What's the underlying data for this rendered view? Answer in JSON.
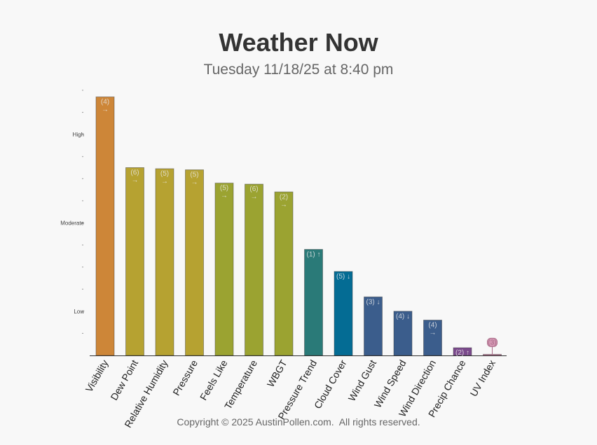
{
  "header": {
    "title": "Weather Now",
    "subtitle": "Tuesday 11/18/25 at 8:40 pm"
  },
  "footer": {
    "text": "Copyright © 2025 AustinPollen.com.  All rights reserved."
  },
  "chart_data": {
    "type": "bar",
    "title": "Weather Now",
    "subtitle": "Tuesday 11/18/25 at 8:40 pm",
    "xlabel": "",
    "ylabel": "",
    "ylim": [
      0,
      12
    ],
    "y_level_labels": [
      {
        "label": "Low",
        "value": 2
      },
      {
        "label": "Moderate",
        "value": 6
      },
      {
        "label": "High",
        "value": 10
      }
    ],
    "grid": false,
    "categories": [
      "Visibility",
      "Dew Point",
      "Relative Humidity",
      "Pressure",
      "Feels Like",
      "Temperature",
      "WBGT",
      "Pressure Trend",
      "Cloud Cover",
      "Wind Gust",
      "Wind Speed",
      "Wind Direction",
      "Precip Chance",
      "UV Index"
    ],
    "values": [
      11.7,
      8.5,
      8.45,
      8.4,
      7.8,
      7.75,
      7.4,
      4.8,
      3.8,
      2.65,
      2.0,
      1.6,
      0.35,
      0.05
    ],
    "labels": [
      "(4)",
      "(6)",
      "(5)",
      "(5)",
      "(5)",
      "(6)",
      "(2)",
      "(1)",
      "(5)",
      "(3)",
      "(4)",
      "(4)",
      "(2)",
      "(3)"
    ],
    "trends": [
      "→",
      "→",
      "→",
      "→",
      "→",
      "→",
      "→",
      "↑",
      "↓",
      "↓",
      "↓",
      "→",
      "↑",
      ""
    ],
    "colors": [
      "#cd8638",
      "#b6a231",
      "#b6a231",
      "#b6a231",
      "#9ba331",
      "#9ba331",
      "#9ba331",
      "#2a7a78",
      "#046c94",
      "#3b5d8c",
      "#3b5d8c",
      "#3b5d8c",
      "#7b4a8c",
      "#c27b9c"
    ]
  }
}
